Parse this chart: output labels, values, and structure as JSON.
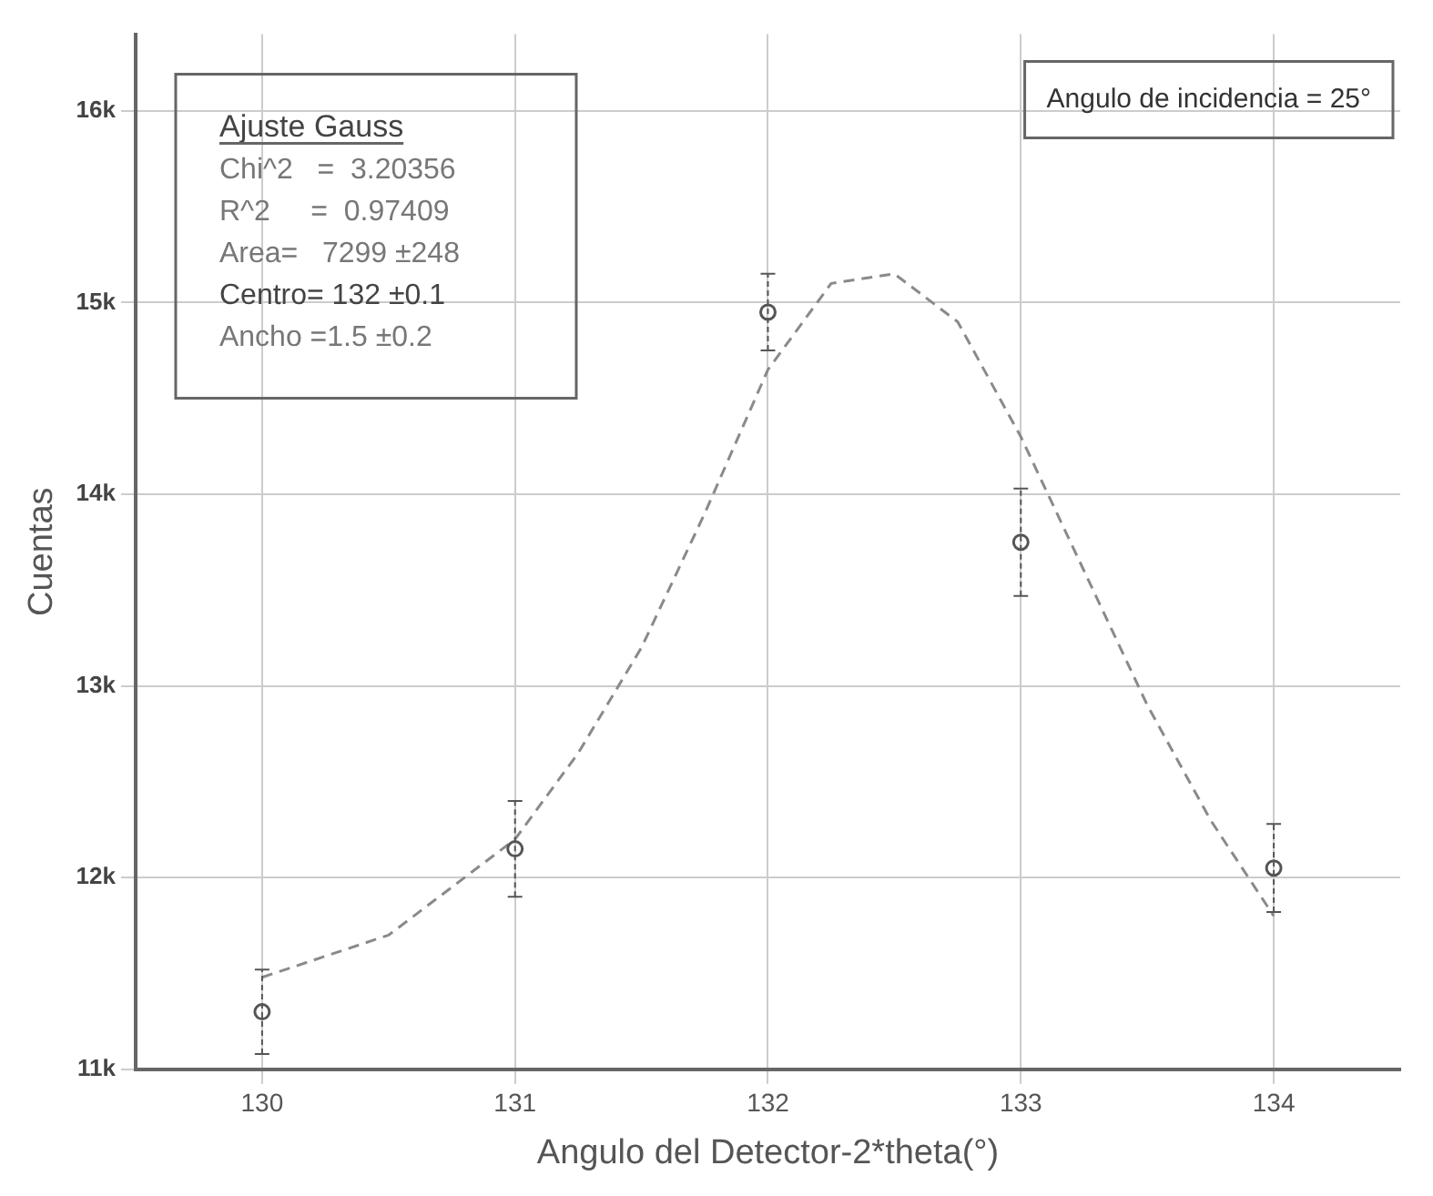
{
  "chart_data": {
    "type": "scatter",
    "xlabel": "Angulo del Detector-2*theta(°)",
    "ylabel": "Cuentas",
    "xlim": [
      129.5,
      134.5
    ],
    "xticks": [
      130,
      131,
      132,
      133,
      134
    ],
    "ylim": [
      11000,
      16400
    ],
    "yticks": [
      {
        "value": 11000,
        "label": "11k"
      },
      {
        "value": 12000,
        "label": "12k"
      },
      {
        "value": 13000,
        "label": "13k"
      },
      {
        "value": 14000,
        "label": "14k"
      },
      {
        "value": 15000,
        "label": "15k"
      },
      {
        "value": 16000,
        "label": "16k"
      }
    ],
    "grid": true,
    "marker": "circle",
    "series": [
      {
        "color": "#555555",
        "x": [
          130,
          131,
          132,
          133,
          134
        ],
        "values": [
          11300,
          12150,
          14950,
          13750,
          12050
        ],
        "errors": [
          220,
          250,
          200,
          280,
          230
        ]
      },
      {
        "type": "line",
        "color": "#8a8a8a",
        "line_style": "dashed",
        "marker": "none",
        "x": [
          130,
          130.5,
          130.75,
          131,
          131.25,
          131.5,
          131.75,
          132,
          132.25,
          132.5,
          132.75,
          133,
          133.25,
          133.5,
          133.75,
          134
        ],
        "values": [
          11480,
          11700,
          11950,
          12200,
          12650,
          13200,
          13900,
          14650,
          15100,
          15150,
          14900,
          14300,
          13600,
          12900,
          12300,
          11800
        ]
      }
    ],
    "annotations": [
      "Ajuste Gauss",
      "Chi^2   =  3.20356",
      "R^2     =  0.97409",
      "Area=   7299 ±248",
      "Centro= 132 ±0.1",
      "Ancho =1.5 ±0.2",
      "Angulo de incidencia = 25°"
    ]
  }
}
